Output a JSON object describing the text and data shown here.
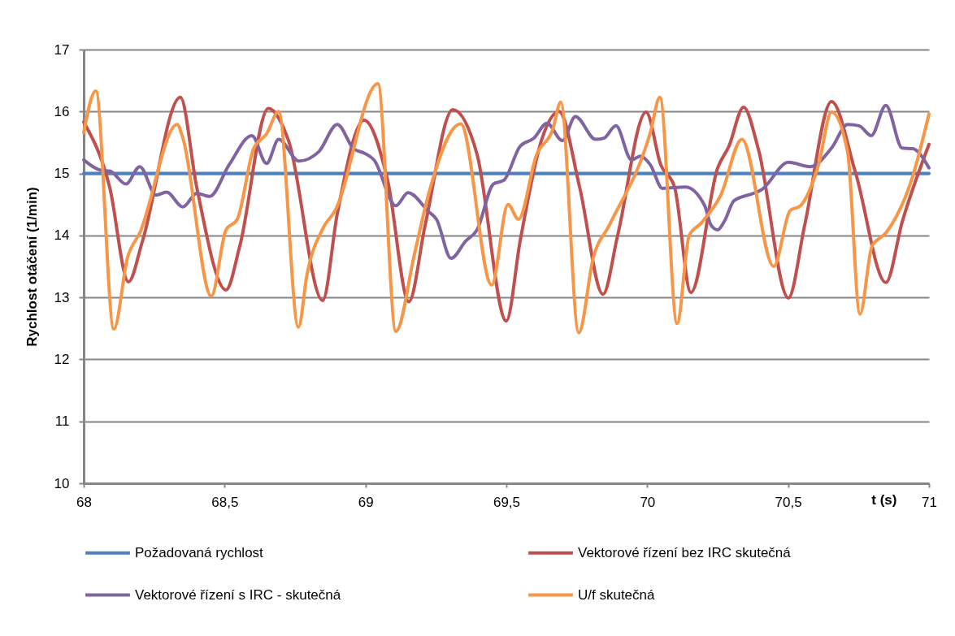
{
  "chart_data": {
    "type": "line",
    "xlabel": "t (s)",
    "ylabel": "Rychlost otáčení (1/min)",
    "xlim": [
      68,
      71
    ],
    "xticks": [
      68,
      {
        "value": 68.5,
        "label": "68,5"
      },
      69,
      {
        "value": 69.5,
        "label": "69,5"
      },
      70,
      {
        "value": 70.5,
        "label": "70,5"
      },
      71
    ],
    "ylim": [
      10,
      17
    ],
    "yticks": [
      10,
      11,
      12,
      13,
      14,
      15,
      16,
      17
    ],
    "grid": "y",
    "legend": "bottom",
    "line_style": "solid",
    "marker": "none",
    "series": [
      {
        "name": "Požadovaná rychlost",
        "color": "#4f81bd",
        "x": [
          68,
          71
        ],
        "values": [
          15,
          15
        ]
      },
      {
        "name": "Vektorové řízení bez IRC skutečná",
        "color": "#c0504d",
        "x": [
          68.0,
          68.092,
          68.159,
          68.208,
          68.343,
          68.401,
          68.505,
          68.554,
          68.655,
          68.727,
          68.848,
          68.9,
          68.995,
          69.079,
          69.154,
          69.212,
          69.31,
          69.396,
          69.5,
          69.549,
          69.627,
          69.687,
          69.76,
          69.843,
          69.895,
          69.996,
          70.048,
          70.097,
          70.155,
          70.25,
          70.29,
          70.342,
          70.394,
          70.501,
          70.559,
          70.654,
          70.74,
          70.847,
          70.905,
          71
        ],
        "values": [
          15.83,
          14.78,
          13.25,
          13.9,
          16.23,
          14.78,
          13.12,
          13.83,
          16.05,
          15.53,
          12.95,
          14.35,
          15.86,
          14.88,
          12.93,
          14.17,
          16.03,
          15.31,
          12.62,
          13.91,
          15.57,
          16.0,
          14.78,
          13.05,
          14.0,
          15.99,
          15.14,
          14.78,
          13.08,
          15.09,
          15.44,
          16.07,
          15.4,
          12.99,
          14.17,
          16.16,
          15.0,
          13.24,
          14.22,
          15.47
        ]
      },
      {
        "name": "Vektorové řízení s IRC - skutečná",
        "color": "#8064a2",
        "x": [
          68.0,
          68.063,
          68.092,
          68.15,
          68.199,
          68.257,
          68.294,
          68.352,
          68.401,
          68.447,
          68.516,
          68.597,
          68.649,
          68.692,
          68.764,
          68.834,
          68.9,
          68.958,
          68.995,
          69.03,
          69.108,
          69.151,
          69.223,
          69.252,
          69.304,
          69.356,
          69.396,
          69.454,
          69.491,
          69.549,
          69.598,
          69.644,
          69.699,
          69.745,
          69.817,
          69.846,
          69.889,
          69.944,
          69.976,
          70.011,
          70.054,
          70.135,
          70.204,
          70.226,
          70.25,
          70.274,
          70.308,
          70.377,
          70.406,
          70.501,
          70.579,
          70.654,
          70.711,
          70.752,
          70.795,
          70.847,
          70.905,
          70.942,
          71
        ],
        "values": [
          15.22,
          15.05,
          15.04,
          14.83,
          15.11,
          14.65,
          14.7,
          14.46,
          14.68,
          14.63,
          15.14,
          15.61,
          15.16,
          15.55,
          15.2,
          15.35,
          15.79,
          15.4,
          15.33,
          15.22,
          14.48,
          14.69,
          14.39,
          14.26,
          13.63,
          13.91,
          14.09,
          14.83,
          14.89,
          15.44,
          15.57,
          15.81,
          15.53,
          15.92,
          15.55,
          15.57,
          15.77,
          15.22,
          15.28,
          15.14,
          14.76,
          14.78,
          14.48,
          14.17,
          14.09,
          14.23,
          14.56,
          14.68,
          14.74,
          15.18,
          15.11,
          15.41,
          15.79,
          15.77,
          15.61,
          16.1,
          15.41,
          15.4,
          15.09
        ]
      },
      {
        "name": "U/f skutečná",
        "color": "#f79646",
        "x": [
          68.0,
          68.043,
          68.107,
          68.156,
          68.199,
          68.332,
          68.352,
          68.453,
          68.505,
          68.545,
          68.603,
          68.649,
          68.692,
          68.762,
          68.793,
          68.851,
          68.891,
          69.044,
          69.108,
          69.174,
          69.223,
          69.338,
          69.448,
          69.506,
          69.543,
          69.607,
          69.664,
          69.693,
          69.757,
          69.809,
          69.866,
          70.011,
          70.045,
          70.106,
          70.149,
          70.192,
          70.261,
          70.336,
          70.449,
          70.507,
          70.544,
          70.608,
          70.654,
          70.711,
          70.755,
          70.798,
          70.847,
          70.942,
          71
        ],
        "values": [
          15.66,
          16.33,
          12.49,
          13.65,
          14.04,
          15.79,
          15.57,
          13.02,
          14.09,
          14.26,
          15.4,
          15.64,
          16.0,
          12.52,
          13.38,
          14.13,
          14.39,
          16.45,
          12.45,
          13.7,
          14.65,
          15.8,
          13.2,
          14.5,
          14.26,
          15.3,
          15.7,
          16.15,
          12.43,
          13.65,
          14.17,
          15.66,
          16.23,
          12.58,
          14.0,
          14.2,
          14.65,
          15.55,
          13.5,
          14.4,
          14.48,
          15.14,
          15.99,
          15.35,
          12.73,
          13.83,
          14.04,
          14.95,
          15.96
        ]
      }
    ]
  }
}
